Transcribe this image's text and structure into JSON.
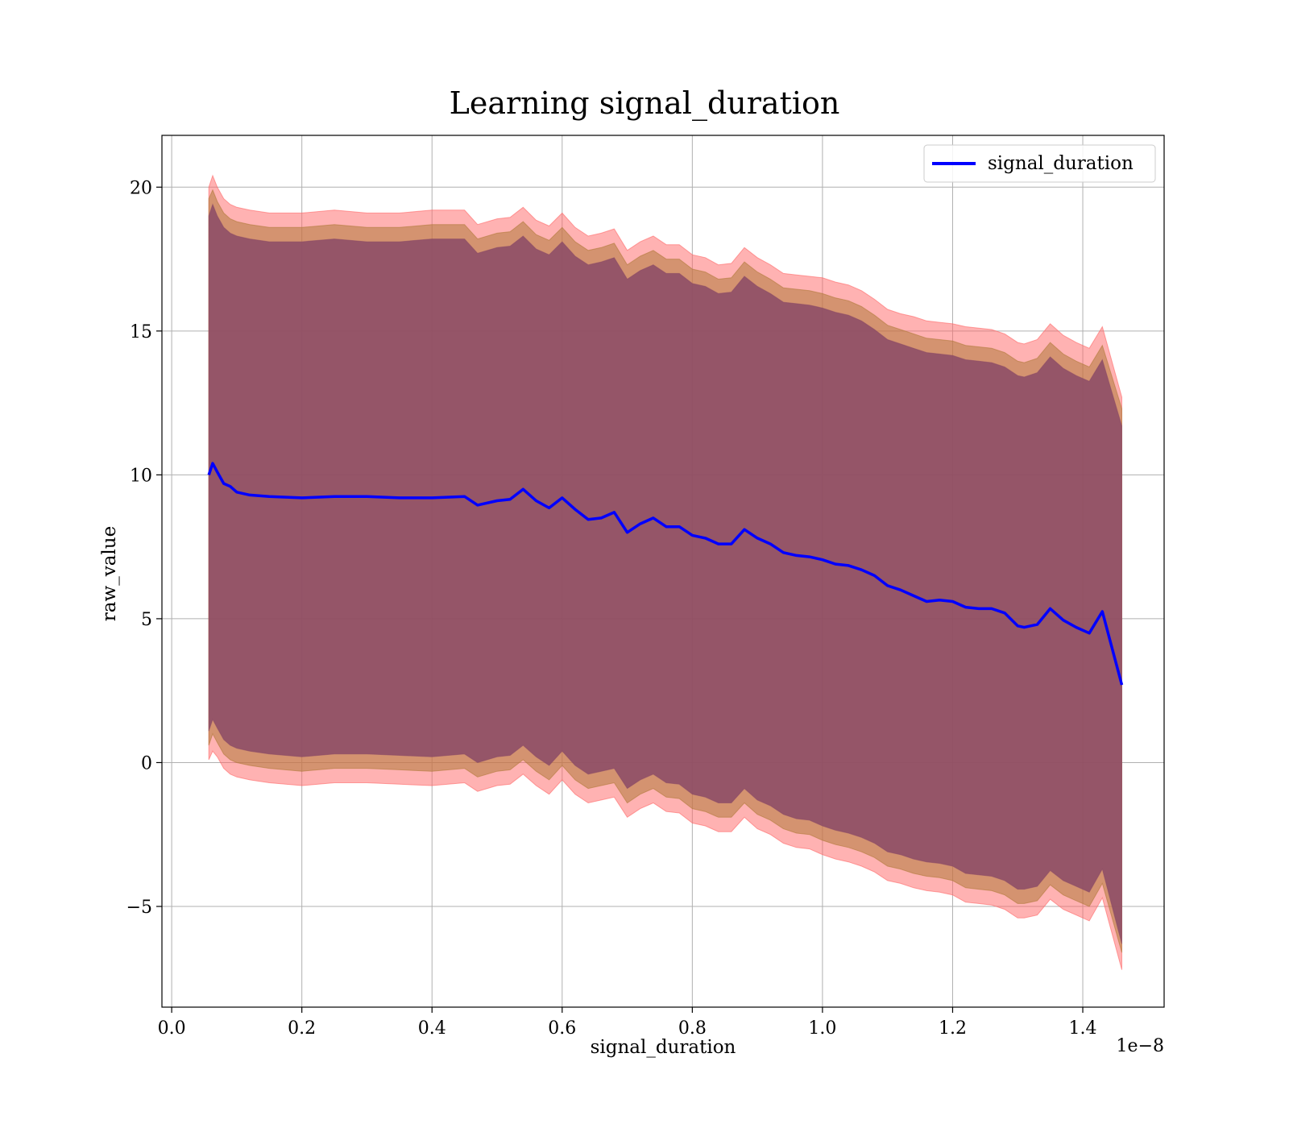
{
  "chart_data": {
    "type": "line",
    "title": "Learning signal_duration",
    "xlabel": "signal_duration",
    "ylabel": "raw_value",
    "x_offset_label": "1e−8",
    "xlim": [
      -0.015,
      1.525
    ],
    "ylim": [
      -8.5,
      21.8
    ],
    "x_ticks": [
      0.0,
      0.2,
      0.4,
      0.6,
      0.8,
      1.0,
      1.2,
      1.4
    ],
    "x_tick_labels": [
      "0.0",
      "0.2",
      "0.4",
      "0.6",
      "0.8",
      "1.0",
      "1.2",
      "1.4"
    ],
    "y_ticks": [
      -5,
      0,
      5,
      10,
      15,
      20
    ],
    "y_tick_labels": [
      "−5",
      "0",
      "5",
      "10",
      "15",
      "20"
    ],
    "grid": true,
    "legend": {
      "position": "top-right",
      "entries": [
        "signal_duration"
      ]
    },
    "colors": {
      "line": "#0000ff",
      "outer_band": "#ff6666",
      "middle_band": "#b07a3a",
      "inner_band": "#8a4a66"
    },
    "series": [
      {
        "name": "signal_duration",
        "x": [
          0.057,
          0.063,
          0.07,
          0.08,
          0.09,
          0.1,
          0.12,
          0.15,
          0.2,
          0.25,
          0.3,
          0.35,
          0.4,
          0.45,
          0.47,
          0.5,
          0.52,
          0.54,
          0.56,
          0.58,
          0.6,
          0.62,
          0.64,
          0.66,
          0.68,
          0.7,
          0.72,
          0.74,
          0.76,
          0.78,
          0.8,
          0.82,
          0.84,
          0.86,
          0.88,
          0.9,
          0.92,
          0.94,
          0.96,
          0.98,
          1.0,
          1.02,
          1.04,
          1.06,
          1.08,
          1.1,
          1.12,
          1.14,
          1.16,
          1.18,
          1.2,
          1.22,
          1.24,
          1.26,
          1.28,
          1.3,
          1.31,
          1.33,
          1.35,
          1.37,
          1.39,
          1.41,
          1.43,
          1.46
        ],
        "y": [
          10.0,
          10.4,
          10.1,
          9.7,
          9.6,
          9.4,
          9.3,
          9.25,
          9.2,
          9.25,
          9.25,
          9.2,
          9.2,
          9.25,
          8.95,
          9.1,
          9.15,
          9.5,
          9.1,
          8.85,
          9.2,
          8.8,
          8.45,
          8.5,
          8.7,
          8.0,
          8.3,
          8.5,
          8.2,
          8.2,
          7.9,
          7.8,
          7.6,
          7.6,
          8.1,
          7.8,
          7.6,
          7.3,
          7.2,
          7.15,
          7.05,
          6.9,
          6.85,
          6.7,
          6.5,
          6.15,
          6.0,
          5.8,
          5.6,
          5.65,
          5.6,
          5.4,
          5.35,
          5.35,
          5.2,
          4.75,
          4.7,
          4.8,
          5.35,
          4.95,
          4.7,
          4.5,
          5.25,
          2.7
        ]
      }
    ],
    "bands": [
      {
        "role": "outer",
        "x": [
          0.057,
          0.063,
          0.07,
          0.08,
          0.09,
          0.1,
          0.12,
          0.15,
          0.2,
          0.25,
          0.3,
          0.35,
          0.4,
          0.45,
          0.47,
          0.5,
          0.52,
          0.54,
          0.56,
          0.58,
          0.6,
          0.62,
          0.64,
          0.66,
          0.68,
          0.7,
          0.72,
          0.74,
          0.76,
          0.78,
          0.8,
          0.82,
          0.84,
          0.86,
          0.88,
          0.9,
          0.92,
          0.94,
          0.96,
          0.98,
          1.0,
          1.02,
          1.04,
          1.06,
          1.08,
          1.1,
          1.12,
          1.14,
          1.16,
          1.18,
          1.2,
          1.22,
          1.24,
          1.26,
          1.28,
          1.3,
          1.31,
          1.33,
          1.35,
          1.37,
          1.39,
          1.41,
          1.43,
          1.46
        ],
        "upper": [
          20.0,
          20.4,
          20.0,
          19.6,
          19.4,
          19.3,
          19.2,
          19.1,
          19.1,
          19.2,
          19.1,
          19.1,
          19.2,
          19.2,
          18.7,
          18.9,
          18.95,
          19.3,
          18.85,
          18.65,
          19.1,
          18.6,
          18.3,
          18.4,
          18.55,
          17.8,
          18.1,
          18.3,
          18.0,
          18.0,
          17.65,
          17.55,
          17.3,
          17.35,
          17.9,
          17.55,
          17.3,
          17.0,
          16.95,
          16.9,
          16.85,
          16.7,
          16.6,
          16.4,
          16.1,
          15.75,
          15.6,
          15.5,
          15.35,
          15.3,
          15.25,
          15.15,
          15.1,
          15.05,
          14.9,
          14.6,
          14.55,
          14.7,
          15.25,
          14.85,
          14.6,
          14.4,
          15.15,
          12.7
        ],
        "lower": [
          0.1,
          0.4,
          0.2,
          -0.2,
          -0.4,
          -0.5,
          -0.6,
          -0.7,
          -0.8,
          -0.7,
          -0.7,
          -0.75,
          -0.8,
          -0.7,
          -1.0,
          -0.8,
          -0.75,
          -0.4,
          -0.8,
          -1.1,
          -0.6,
          -1.1,
          -1.4,
          -1.3,
          -1.2,
          -1.9,
          -1.6,
          -1.4,
          -1.7,
          -1.75,
          -2.1,
          -2.2,
          -2.4,
          -2.4,
          -1.9,
          -2.3,
          -2.5,
          -2.8,
          -2.95,
          -3.0,
          -3.2,
          -3.35,
          -3.45,
          -3.6,
          -3.8,
          -4.1,
          -4.2,
          -4.35,
          -4.45,
          -4.5,
          -4.6,
          -4.85,
          -4.9,
          -4.95,
          -5.1,
          -5.4,
          -5.4,
          -5.3,
          -4.75,
          -5.1,
          -5.3,
          -5.5,
          -4.7,
          -7.2
        ]
      },
      {
        "role": "middle",
        "x": [
          0.057,
          0.063,
          0.07,
          0.08,
          0.09,
          0.1,
          0.12,
          0.15,
          0.2,
          0.25,
          0.3,
          0.35,
          0.4,
          0.45,
          0.47,
          0.5,
          0.52,
          0.54,
          0.56,
          0.58,
          0.6,
          0.62,
          0.64,
          0.66,
          0.68,
          0.7,
          0.72,
          0.74,
          0.76,
          0.78,
          0.8,
          0.82,
          0.84,
          0.86,
          0.88,
          0.9,
          0.92,
          0.94,
          0.96,
          0.98,
          1.0,
          1.02,
          1.04,
          1.06,
          1.08,
          1.1,
          1.12,
          1.14,
          1.16,
          1.18,
          1.2,
          1.22,
          1.24,
          1.26,
          1.28,
          1.3,
          1.31,
          1.33,
          1.35,
          1.37,
          1.39,
          1.41,
          1.43,
          1.46
        ],
        "upper": [
          19.6,
          19.9,
          19.5,
          19.1,
          18.9,
          18.8,
          18.7,
          18.6,
          18.6,
          18.7,
          18.6,
          18.6,
          18.7,
          18.7,
          18.2,
          18.4,
          18.45,
          18.8,
          18.35,
          18.15,
          18.6,
          18.1,
          17.8,
          17.9,
          18.05,
          17.3,
          17.6,
          17.8,
          17.5,
          17.5,
          17.15,
          17.05,
          16.8,
          16.85,
          17.4,
          17.05,
          16.8,
          16.5,
          16.45,
          16.4,
          16.3,
          16.15,
          16.05,
          15.85,
          15.55,
          15.2,
          15.05,
          14.9,
          14.75,
          14.7,
          14.65,
          14.5,
          14.45,
          14.4,
          14.25,
          13.95,
          13.9,
          14.05,
          14.6,
          14.2,
          13.95,
          13.75,
          14.5,
          12.3
        ],
        "lower": [
          0.6,
          1.0,
          0.7,
          0.3,
          0.1,
          0.0,
          -0.1,
          -0.2,
          -0.3,
          -0.2,
          -0.2,
          -0.25,
          -0.3,
          -0.2,
          -0.5,
          -0.3,
          -0.25,
          0.1,
          -0.3,
          -0.6,
          -0.1,
          -0.6,
          -0.9,
          -0.8,
          -0.7,
          -1.4,
          -1.1,
          -0.9,
          -1.2,
          -1.25,
          -1.6,
          -1.7,
          -1.9,
          -1.9,
          -1.4,
          -1.8,
          -2.0,
          -2.3,
          -2.45,
          -2.5,
          -2.7,
          -2.85,
          -2.95,
          -3.1,
          -3.3,
          -3.6,
          -3.7,
          -3.85,
          -3.95,
          -4.0,
          -4.1,
          -4.35,
          -4.4,
          -4.45,
          -4.6,
          -4.9,
          -4.9,
          -4.8,
          -4.25,
          -4.6,
          -4.8,
          -5.0,
          -4.2,
          -6.6
        ]
      },
      {
        "role": "inner",
        "x": [
          0.057,
          0.063,
          0.07,
          0.08,
          0.09,
          0.1,
          0.12,
          0.15,
          0.2,
          0.25,
          0.3,
          0.35,
          0.4,
          0.45,
          0.47,
          0.5,
          0.52,
          0.54,
          0.56,
          0.58,
          0.6,
          0.62,
          0.64,
          0.66,
          0.68,
          0.7,
          0.72,
          0.74,
          0.76,
          0.78,
          0.8,
          0.82,
          0.84,
          0.86,
          0.88,
          0.9,
          0.92,
          0.94,
          0.96,
          0.98,
          1.0,
          1.02,
          1.04,
          1.06,
          1.08,
          1.1,
          1.12,
          1.14,
          1.16,
          1.18,
          1.2,
          1.22,
          1.24,
          1.26,
          1.28,
          1.3,
          1.31,
          1.33,
          1.35,
          1.37,
          1.39,
          1.41,
          1.43,
          1.46
        ],
        "upper": [
          19.0,
          19.4,
          19.0,
          18.6,
          18.4,
          18.3,
          18.2,
          18.1,
          18.1,
          18.2,
          18.1,
          18.1,
          18.2,
          18.2,
          17.7,
          17.9,
          17.95,
          18.3,
          17.85,
          17.65,
          18.1,
          17.6,
          17.3,
          17.4,
          17.55,
          16.8,
          17.1,
          17.3,
          17.0,
          17.0,
          16.65,
          16.55,
          16.3,
          16.35,
          16.9,
          16.55,
          16.3,
          16.0,
          15.95,
          15.9,
          15.8,
          15.65,
          15.55,
          15.35,
          15.05,
          14.7,
          14.55,
          14.4,
          14.25,
          14.2,
          14.15,
          14.0,
          13.95,
          13.9,
          13.75,
          13.45,
          13.4,
          13.55,
          14.1,
          13.7,
          13.45,
          13.25,
          14.0,
          11.7
        ],
        "lower": [
          1.1,
          1.5,
          1.2,
          0.8,
          0.6,
          0.5,
          0.4,
          0.3,
          0.2,
          0.3,
          0.3,
          0.25,
          0.2,
          0.3,
          0.0,
          0.2,
          0.25,
          0.6,
          0.2,
          -0.1,
          0.4,
          -0.1,
          -0.4,
          -0.3,
          -0.2,
          -0.9,
          -0.6,
          -0.4,
          -0.7,
          -0.75,
          -1.1,
          -1.2,
          -1.4,
          -1.4,
          -0.9,
          -1.3,
          -1.5,
          -1.8,
          -1.95,
          -2.0,
          -2.2,
          -2.35,
          -2.45,
          -2.6,
          -2.8,
          -3.1,
          -3.2,
          -3.35,
          -3.45,
          -3.5,
          -3.6,
          -3.85,
          -3.9,
          -3.95,
          -4.1,
          -4.4,
          -4.4,
          -4.3,
          -3.75,
          -4.1,
          -4.3,
          -4.5,
          -3.7,
          -6.3
        ]
      }
    ]
  }
}
